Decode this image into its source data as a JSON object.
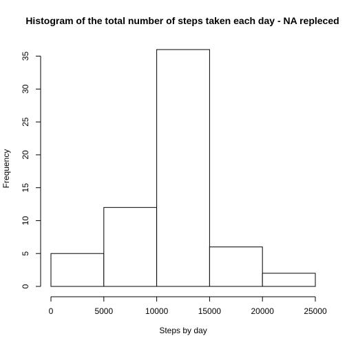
{
  "chart_data": {
    "type": "bar",
    "title": "Histogram of the total number of steps taken each day - NA repleced",
    "xlabel": "Steps by day",
    "ylabel": "Frequency",
    "bins": [
      {
        "from": 0,
        "to": 5000,
        "count": 5
      },
      {
        "from": 5000,
        "to": 10000,
        "count": 12
      },
      {
        "from": 10000,
        "to": 15000,
        "count": 36
      },
      {
        "from": 15000,
        "to": 20000,
        "count": 6
      },
      {
        "from": 20000,
        "to": 25000,
        "count": 2
      }
    ],
    "xlim": [
      0,
      25000
    ],
    "ylim": [
      0,
      36
    ],
    "x_ticks": [
      0,
      5000,
      10000,
      15000,
      20000,
      25000
    ],
    "y_ticks": [
      0,
      5,
      10,
      15,
      20,
      25,
      30,
      35
    ],
    "grid": false,
    "bar_fill": "#ffffff",
    "bar_stroke": "#000000"
  }
}
